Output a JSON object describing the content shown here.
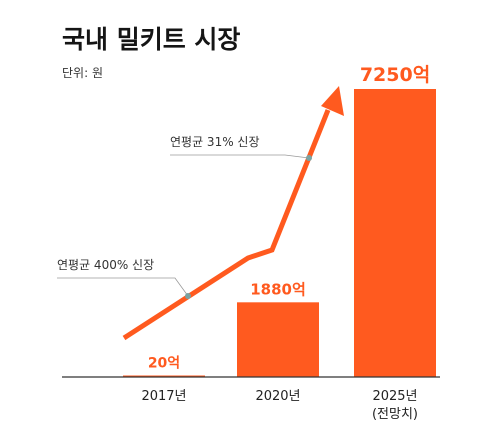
{
  "chart_data": {
    "type": "bar",
    "title": "국내 밀키트 시장",
    "unit_label": "단위: 원",
    "categories": [
      "2017년",
      "2020년",
      "2025년"
    ],
    "category_sublabels": [
      "",
      "",
      "(전망치)"
    ],
    "values": [
      20,
      1880,
      7250
    ],
    "value_labels": [
      "20억",
      "1880억",
      "7250억"
    ],
    "unit": "억",
    "ylim": [
      0,
      7250
    ],
    "grid": false,
    "annotations": [
      "연평균 400% 신장",
      "연평균 31% 신장"
    ],
    "colors": {
      "bar": "#ff5a1f",
      "arrow": "#ff5a1f",
      "annotation_dot": "#7aa3a3",
      "annotation_line": "#9a9a9a",
      "baseline": "#333333",
      "title": "#151515"
    }
  }
}
